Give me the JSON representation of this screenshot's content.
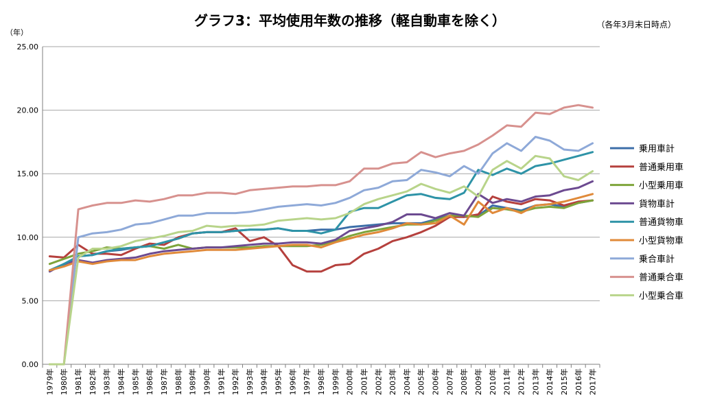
{
  "chart_data": {
    "type": "line",
    "title": "グラフ3：平均使用年数の推移（軽自動車を除く）",
    "note": "（各年3月末日時点）",
    "ylabel": "（年）",
    "ylim": [
      0,
      25
    ],
    "yticks": [
      "0.00",
      "5.00",
      "10.00",
      "15.00",
      "20.00",
      "25.00"
    ],
    "grid": true,
    "legend_position": "right",
    "categories": [
      "1979年",
      "1980年",
      "1981年",
      "1982年",
      "1983年",
      "1984年",
      "1985年",
      "1986年",
      "1987年",
      "1988年",
      "1989年",
      "1990年",
      "1991年",
      "1992年",
      "1993年",
      "1994年",
      "1995年",
      "1996年",
      "1997年",
      "1998年",
      "1999年",
      "2000年",
      "2001年",
      "2002年",
      "2003年",
      "2004年",
      "2005年",
      "2006年",
      "2007年",
      "2008年",
      "2009年",
      "2010年",
      "2011年",
      "2012年",
      "2013年",
      "2014年",
      "2015年",
      "2016年",
      "2017年"
    ],
    "series": [
      {
        "name": "乗用車計",
        "color": "#3c6ea8",
        "values": [
          7.4,
          7.8,
          8.5,
          8.6,
          8.9,
          9.0,
          9.2,
          9.3,
          9.6,
          9.9,
          10.3,
          10.4,
          10.4,
          10.5,
          10.6,
          10.6,
          10.7,
          10.5,
          10.5,
          10.6,
          10.6,
          10.8,
          10.9,
          11.0,
          11.1,
          11.1,
          11.1,
          11.4,
          11.7,
          11.6,
          11.7,
          12.5,
          12.3,
          12.1,
          12.5,
          12.6,
          12.4,
          12.7,
          12.9
        ]
      },
      {
        "name": "普通乗用車",
        "color": "#b5403d",
        "values": [
          8.5,
          8.4,
          9.4,
          8.7,
          8.7,
          8.6,
          9.1,
          9.5,
          9.4,
          10.0,
          10.3,
          10.4,
          10.4,
          10.7,
          9.7,
          10.0,
          9.3,
          7.8,
          7.3,
          7.3,
          7.8,
          7.9,
          8.7,
          9.1,
          9.7,
          10.0,
          10.4,
          10.9,
          11.6,
          11.6,
          11.8,
          13.2,
          12.8,
          12.6,
          13.0,
          12.9,
          12.5,
          12.8,
          12.9
        ]
      },
      {
        "name": "小型乗用車",
        "color": "#7ea43a",
        "values": [
          7.9,
          8.3,
          8.7,
          8.9,
          9.2,
          9.1,
          9.2,
          9.3,
          9.1,
          9.4,
          9.1,
          9.2,
          9.2,
          9.2,
          9.2,
          9.3,
          9.3,
          9.3,
          9.3,
          9.4,
          9.7,
          10.1,
          10.4,
          10.6,
          10.8,
          11.0,
          11.0,
          11.3,
          11.7,
          11.7,
          11.6,
          12.3,
          12.2,
          12.0,
          12.3,
          12.4,
          12.3,
          12.7,
          12.9
        ]
      },
      {
        "name": "貨物車計",
        "color": "#6c4a90",
        "values": [
          7.3,
          7.9,
          8.2,
          8.0,
          8.2,
          8.3,
          8.4,
          8.7,
          8.9,
          9.0,
          9.1,
          9.2,
          9.2,
          9.3,
          9.4,
          9.5,
          9.5,
          9.6,
          9.6,
          9.5,
          9.8,
          10.5,
          10.7,
          10.9,
          11.2,
          11.8,
          11.8,
          11.5,
          11.9,
          11.7,
          13.4,
          12.7,
          13.0,
          12.8,
          13.2,
          13.3,
          13.7,
          13.9,
          14.4
        ]
      },
      {
        "name": "普通貨物車",
        "color": "#2e93a7",
        "values": [
          7.4,
          7.9,
          8.5,
          8.6,
          8.9,
          9.1,
          9.2,
          9.3,
          9.6,
          9.9,
          10.3,
          10.4,
          10.4,
          10.5,
          10.6,
          10.6,
          10.7,
          10.5,
          10.5,
          10.3,
          10.6,
          12.0,
          12.3,
          12.3,
          12.8,
          13.3,
          13.4,
          13.1,
          13.0,
          13.5,
          15.3,
          14.9,
          15.4,
          15.0,
          15.6,
          15.8,
          16.1,
          16.4,
          16.7
        ]
      },
      {
        "name": "小型貨物車",
        "color": "#e08a3a",
        "values": [
          7.4,
          7.7,
          8.1,
          7.9,
          8.1,
          8.2,
          8.2,
          8.5,
          8.7,
          8.8,
          8.9,
          9.0,
          9.0,
          9.0,
          9.1,
          9.2,
          9.3,
          9.4,
          9.4,
          9.2,
          9.6,
          9.9,
          10.2,
          10.4,
          10.7,
          11.1,
          11.0,
          11.1,
          11.7,
          11.0,
          12.8,
          11.9,
          12.3,
          11.9,
          12.5,
          12.6,
          12.8,
          13.1,
          13.4
        ]
      },
      {
        "name": "乗合車計",
        "color": "#8ea9d8",
        "values": [
          0,
          0,
          10.0,
          10.3,
          10.4,
          10.6,
          11.0,
          11.1,
          11.4,
          11.7,
          11.7,
          11.9,
          11.9,
          11.9,
          12.0,
          12.2,
          12.4,
          12.5,
          12.6,
          12.5,
          12.7,
          13.1,
          13.7,
          13.9,
          14.4,
          14.5,
          15.3,
          15.1,
          14.8,
          15.6,
          15.0,
          16.6,
          17.4,
          16.8,
          17.9,
          17.6,
          16.9,
          16.8,
          17.4
        ]
      },
      {
        "name": "普通乗合車",
        "color": "#d7918e",
        "values": [
          0,
          0,
          12.2,
          12.5,
          12.7,
          12.7,
          12.9,
          12.8,
          13.0,
          13.3,
          13.3,
          13.5,
          13.5,
          13.4,
          13.7,
          13.8,
          13.9,
          14.0,
          14.0,
          14.1,
          14.1,
          14.4,
          15.4,
          15.4,
          15.8,
          15.9,
          16.7,
          16.3,
          16.6,
          16.8,
          17.3,
          18.0,
          18.8,
          18.7,
          19.8,
          19.7,
          20.2,
          20.4,
          20.2
        ]
      },
      {
        "name": "小型乗合車",
        "color": "#b8d48a",
        "values": [
          0,
          0,
          8.4,
          9.1,
          9.1,
          9.3,
          9.7,
          9.9,
          10.1,
          10.4,
          10.5,
          10.9,
          10.8,
          10.9,
          10.9,
          11.0,
          11.3,
          11.4,
          11.5,
          11.4,
          11.5,
          11.9,
          12.6,
          13.0,
          13.3,
          13.6,
          14.2,
          13.8,
          13.5,
          14.0,
          13.2,
          15.3,
          16.0,
          15.4,
          16.4,
          16.2,
          14.8,
          14.5,
          15.2
        ]
      }
    ]
  }
}
